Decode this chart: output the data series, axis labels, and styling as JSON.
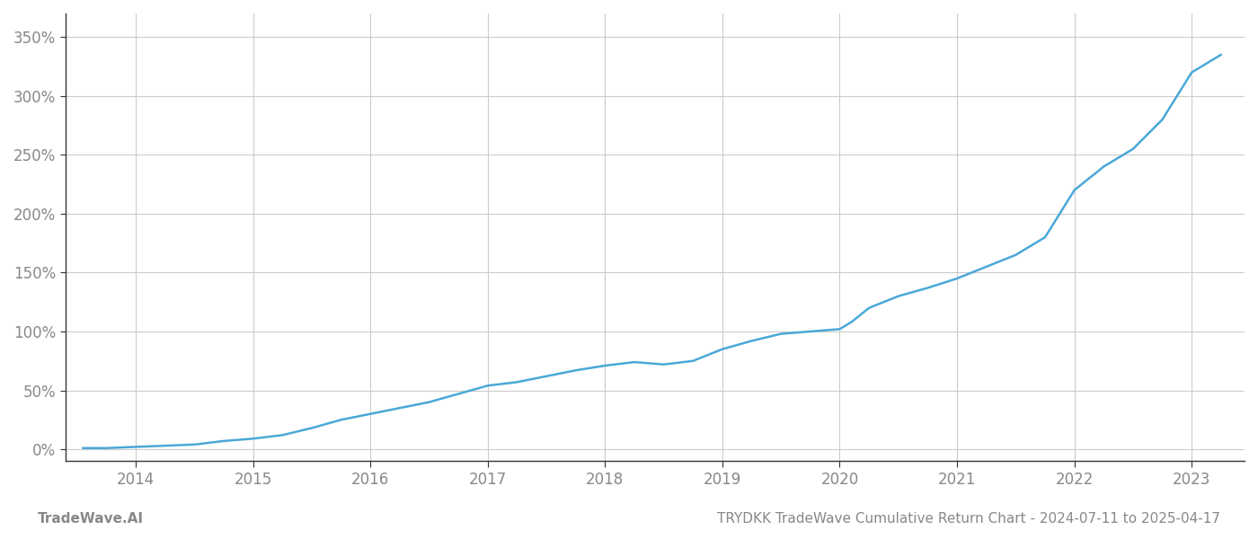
{
  "title": "TRYDKK TradeWave Cumulative Return Chart - 2024-07-11 to 2025-04-17",
  "watermark": "TradeWave.AI",
  "line_color": "#4aa8d8",
  "background_color": "#ffffff",
  "grid_color": "#cccccc",
  "x_tick_labels": [
    "2014",
    "2015",
    "2016",
    "2017",
    "2018",
    "2019",
    "2020",
    "2021",
    "2022",
    "2023"
  ],
  "x_tick_positions": [
    2014,
    2015,
    2016,
    2017,
    2018,
    2019,
    2020,
    2021,
    2022,
    2023
  ],
  "x_values": [
    2013.55,
    2013.75,
    2014.0,
    2014.25,
    2014.5,
    2014.75,
    2015.0,
    2015.25,
    2015.5,
    2015.75,
    2016.0,
    2016.25,
    2016.5,
    2016.75,
    2017.0,
    2017.25,
    2017.5,
    2017.75,
    2018.0,
    2018.25,
    2018.5,
    2018.75,
    2019.0,
    2019.25,
    2019.5,
    2019.75,
    2020.0,
    2020.1,
    2020.25,
    2020.5,
    2020.75,
    2021.0,
    2021.25,
    2021.5,
    2021.75,
    2022.0,
    2022.25,
    2022.5,
    2022.75,
    2023.0,
    2023.25
  ],
  "y_values": [
    1,
    1,
    2,
    3,
    4,
    7,
    9,
    12,
    18,
    25,
    30,
    35,
    40,
    47,
    54,
    57,
    62,
    67,
    71,
    74,
    72,
    75,
    85,
    92,
    98,
    100,
    102,
    108,
    120,
    130,
    137,
    145,
    155,
    165,
    180,
    220,
    240,
    255,
    280,
    320,
    335
  ],
  "ylim": [
    -10,
    370
  ],
  "y_ticks": [
    0,
    50,
    100,
    150,
    200,
    250,
    300,
    350
  ],
  "y_tick_labels": [
    "0%",
    "50%",
    "100%",
    "150%",
    "200%",
    "250%",
    "300%",
    "350%"
  ],
  "xlim": [
    2013.4,
    2023.45
  ],
  "label_color": "#888888",
  "title_color": "#888888",
  "watermark_color": "#888888",
  "spine_color": "#333333",
  "line_width": 1.8,
  "title_fontsize": 11,
  "tick_fontsize": 12,
  "watermark_fontsize": 11
}
